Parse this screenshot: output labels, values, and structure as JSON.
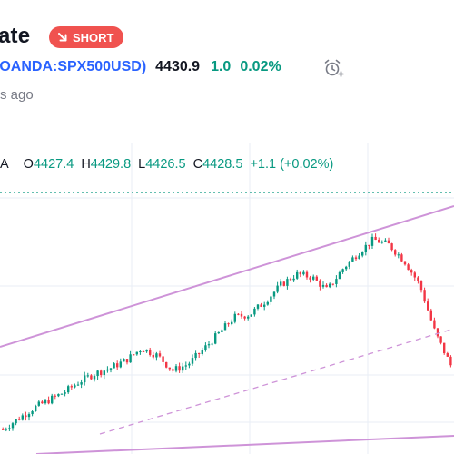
{
  "header": {
    "title_fragment": "ate",
    "badge_label": "SHORT",
    "symbol": "(OANDA:SPX500USD)",
    "price": "4430.9",
    "change": "1.0",
    "change_pct": "0.02%",
    "published_fragment": "s ago"
  },
  "ohlc": {
    "interval_fragment": "A",
    "open_label": "O",
    "open": "4427.4",
    "high_label": "H",
    "high": "4429.8",
    "low_label": "L",
    "low": "4426.5",
    "close_label": "C",
    "close": "4428.5",
    "change": "+1.1 (+0.02%)"
  },
  "colors": {
    "up": "#089981",
    "down": "#f23645",
    "short_badge": "#f0524f",
    "symbol": "#2962ff",
    "channel": "#ce93d8",
    "grid": "#e9edf5",
    "price_line": "#089981"
  },
  "icons": {
    "badge": "arrow-down-right-icon",
    "alarm": "alarm-clock-plus-icon"
  },
  "chart_data": {
    "type": "candlestick",
    "trend": "uptrend inside rising channel, pullback at right edge",
    "close_points": [
      4080,
      4100,
      4120,
      4135,
      4150,
      4170,
      4185,
      4195,
      4210,
      4232,
      4218,
      4190,
      4202,
      4230,
      4260,
      4290,
      4295,
      4320,
      4350,
      4370,
      4365,
      4340,
      4380,
      4410,
      4435,
      4425,
      4395,
      4350,
      4260,
      4200
    ]
  }
}
